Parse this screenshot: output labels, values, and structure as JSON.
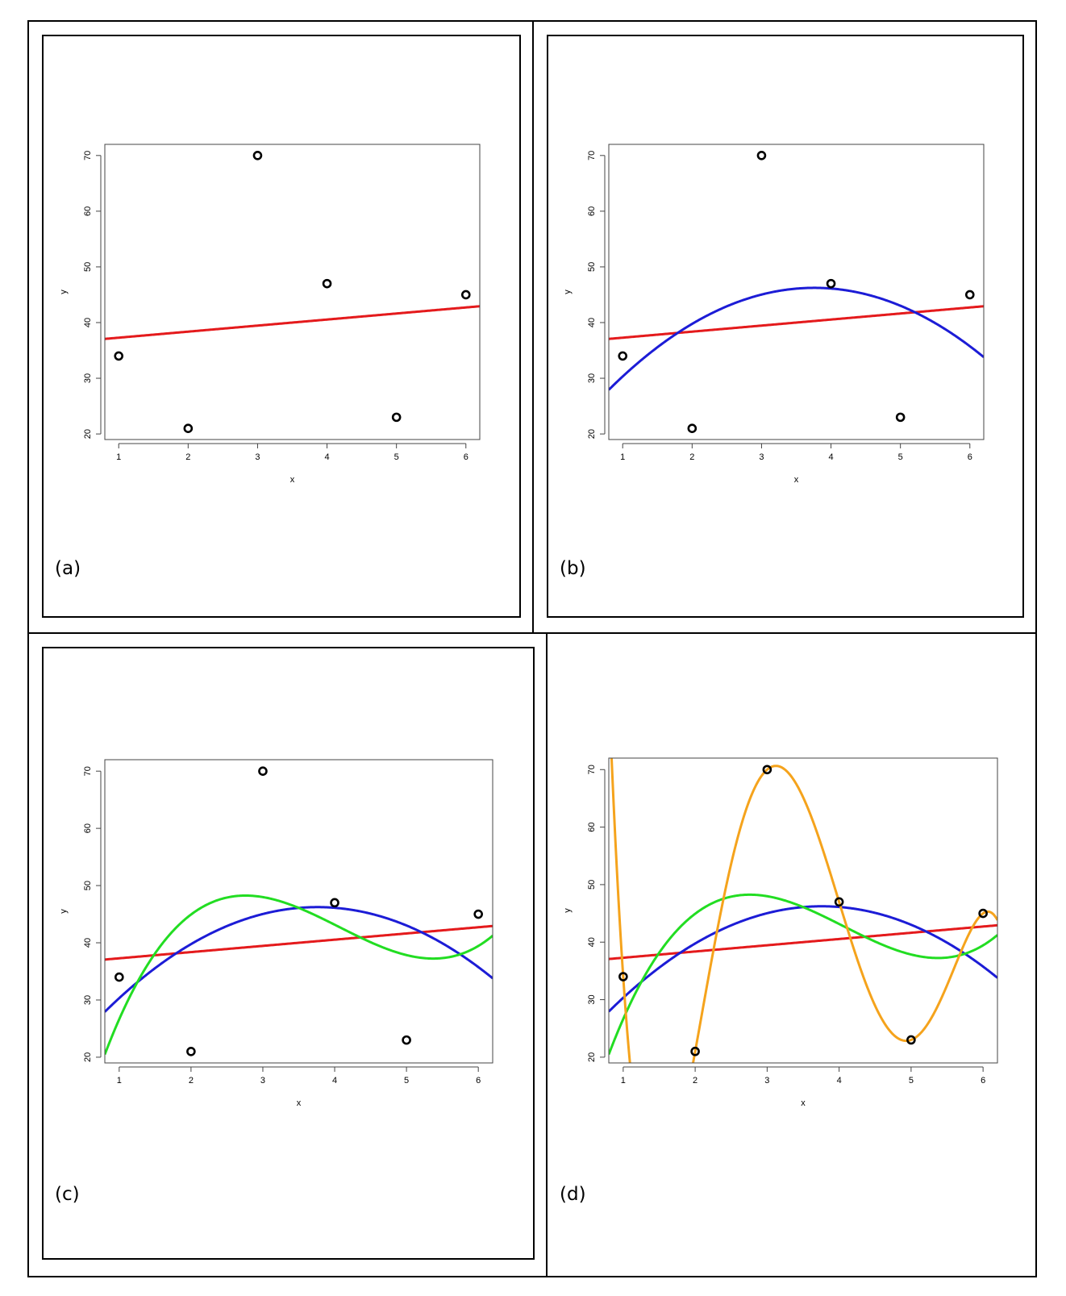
{
  "colors": {
    "linear": "#e41a1c",
    "quadratic": "#1c1cd6",
    "cubic": "#22dd22",
    "quintic": "#f5a31c",
    "points": "#000000"
  },
  "chart_data": [
    {
      "type": "scatter",
      "label": "(a)",
      "xlabel": "x",
      "ylabel": "y",
      "xlim": [
        0.8,
        6.2
      ],
      "ylim": [
        19,
        72
      ],
      "xticks": [
        1,
        2,
        3,
        4,
        5,
        6
      ],
      "yticks": [
        20,
        30,
        40,
        50,
        60,
        70
      ],
      "points": {
        "x": [
          1,
          2,
          3,
          4,
          5,
          6
        ],
        "y": [
          34,
          21,
          70,
          47,
          23,
          45
        ]
      },
      "fits": [
        {
          "degree": 1,
          "color": "#e41a1c"
        }
      ]
    },
    {
      "type": "scatter",
      "label": "(b)",
      "xlabel": "x",
      "ylabel": "y",
      "xlim": [
        0.8,
        6.2
      ],
      "ylim": [
        19,
        72
      ],
      "xticks": [
        1,
        2,
        3,
        4,
        5,
        6
      ],
      "yticks": [
        20,
        30,
        40,
        50,
        60,
        70
      ],
      "points": {
        "x": [
          1,
          2,
          3,
          4,
          5,
          6
        ],
        "y": [
          34,
          21,
          70,
          47,
          23,
          45
        ]
      },
      "fits": [
        {
          "degree": 1,
          "color": "#e41a1c"
        },
        {
          "degree": 2,
          "color": "#1c1cd6"
        }
      ]
    },
    {
      "type": "scatter",
      "label": "(c)",
      "xlabel": "x",
      "ylabel": "y",
      "xlim": [
        0.8,
        6.2
      ],
      "ylim": [
        19,
        72
      ],
      "xticks": [
        1,
        2,
        3,
        4,
        5,
        6
      ],
      "yticks": [
        20,
        30,
        40,
        50,
        60,
        70
      ],
      "points": {
        "x": [
          1,
          2,
          3,
          4,
          5,
          6
        ],
        "y": [
          34,
          21,
          70,
          47,
          23,
          45
        ]
      },
      "fits": [
        {
          "degree": 1,
          "color": "#e41a1c"
        },
        {
          "degree": 2,
          "color": "#1c1cd6"
        },
        {
          "degree": 3,
          "color": "#22dd22"
        }
      ]
    },
    {
      "type": "scatter",
      "label": "(d)",
      "xlabel": "x",
      "ylabel": "y",
      "xlim": [
        0.8,
        6.2
      ],
      "ylim": [
        19,
        72
      ],
      "xticks": [
        1,
        2,
        3,
        4,
        5,
        6
      ],
      "yticks": [
        20,
        30,
        40,
        50,
        60,
        70
      ],
      "points": {
        "x": [
          1,
          2,
          3,
          4,
          5,
          6
        ],
        "y": [
          34,
          21,
          70,
          47,
          23,
          45
        ]
      },
      "fits": [
        {
          "degree": 1,
          "color": "#e41a1c"
        },
        {
          "degree": 2,
          "color": "#1c1cd6"
        },
        {
          "degree": 3,
          "color": "#22dd22"
        },
        {
          "degree": 5,
          "color": "#f5a31c"
        }
      ]
    }
  ]
}
